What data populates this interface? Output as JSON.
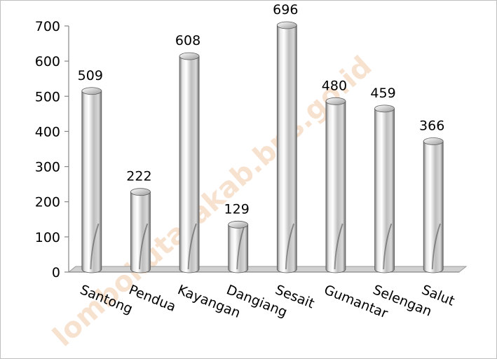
{
  "chart_data": {
    "type": "bar",
    "categories": [
      "Santong",
      "Pendua",
      "Kayangan",
      "Dangiang",
      "Sesait",
      "Gumantar",
      "Selengan",
      "Salut"
    ],
    "values": [
      509,
      222,
      608,
      129,
      696,
      480,
      459,
      366
    ],
    "y_ticks": [
      "0",
      "100",
      "200",
      "300",
      "400",
      "500",
      "600",
      "700"
    ],
    "ylim": [
      0,
      700
    ],
    "grid": false,
    "legend": "none",
    "style": "3d-cylinder",
    "bar_color": "#a6a6a6",
    "watermark": "lombokutarakab.bps.go.id"
  }
}
